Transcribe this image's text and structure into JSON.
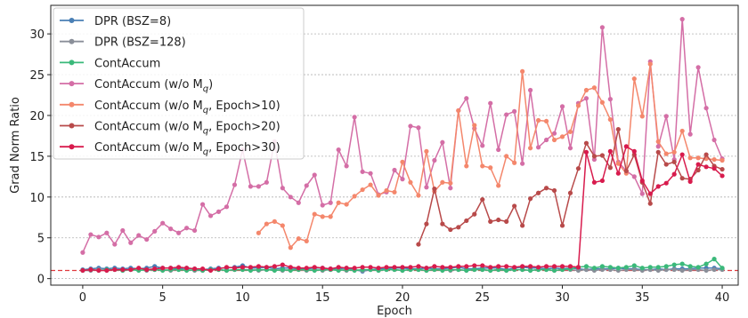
{
  "chart_data": {
    "type": "line",
    "title": "",
    "xlabel": "Epoch",
    "ylabel": "Grad Norm Ratio",
    "xlim": [
      -2,
      41
    ],
    "ylim": [
      -0.8,
      33.5
    ],
    "xticks": [
      0,
      5,
      10,
      15,
      20,
      25,
      30,
      35,
      40
    ],
    "yticks": [
      0,
      5,
      10,
      15,
      20,
      25,
      30
    ],
    "grid": "horizontal dotted",
    "legend_position": "top-left",
    "reference_line": {
      "y": 1,
      "color": "#e0393e",
      "style": "dashed"
    },
    "series": [
      {
        "name": "DPR (BSZ=8)",
        "legend_main": "DPR (BSZ=8)",
        "legend_sub": "",
        "legend_rest": "",
        "color": "#4a7fb5",
        "x": [
          0,
          0.5,
          1,
          1.5,
          2,
          2.5,
          3,
          3.5,
          4,
          4.5,
          5,
          5.5,
          6,
          6.5,
          7,
          7.5,
          8,
          8.5,
          9,
          9.5,
          10,
          10.5,
          11,
          11.5,
          12,
          12.5,
          13,
          13.5,
          14,
          14.5,
          15,
          15.5,
          16,
          16.5,
          17,
          17.5,
          18,
          18.5,
          19,
          19.5,
          20,
          20.5,
          21,
          21.5,
          22,
          22.5,
          23,
          23.5,
          24,
          24.5,
          25,
          25.5,
          26,
          26.5,
          27,
          27.5,
          28,
          28.5,
          29,
          29.5,
          30,
          30.5,
          31,
          31.5,
          32,
          32.5,
          33,
          33.5,
          34,
          34.5,
          35,
          35.5,
          36,
          36.5,
          37,
          37.5,
          38,
          38.5,
          39,
          39.5,
          40
        ],
        "values": [
          1.1,
          1.2,
          1.3,
          1.2,
          1.3,
          1.2,
          1.3,
          1.2,
          1.3,
          1.5,
          1.3,
          1.3,
          1.2,
          1.3,
          1.2,
          1.1,
          1.2,
          1.3,
          1.3,
          1.4,
          1.6,
          1.3,
          1.3,
          1.4,
          1.2,
          1.3,
          1.3,
          1.2,
          1.2,
          1.3,
          1.3,
          1.2,
          1.2,
          1.3,
          1.1,
          0.9,
          1.1,
          1.2,
          1.2,
          1.3,
          1.3,
          1.2,
          1.2,
          1.3,
          1.2,
          1.2,
          1.3,
          1.4,
          1.2,
          1.2,
          1.3,
          1.3,
          1.3,
          1.1,
          1.3,
          1.4,
          1.3,
          1.3,
          1.2,
          1.3,
          1.2,
          1.3,
          1.2,
          1.1,
          1.2,
          1.2,
          1.2,
          1.3,
          1.2,
          1.2,
          1.1,
          1.1,
          1.2,
          1.1,
          1.2,
          1.2,
          1.2,
          1.3,
          1.3,
          1.3,
          1.2
        ]
      },
      {
        "name": "DPR (BSZ=128)",
        "legend_main": "DPR (BSZ=128)",
        "legend_sub": "",
        "legend_rest": "",
        "color": "#8a8f99",
        "x": [
          0,
          0.5,
          1,
          1.5,
          2,
          2.5,
          3,
          3.5,
          4,
          4.5,
          5,
          5.5,
          6,
          6.5,
          7,
          7.5,
          8,
          8.5,
          9,
          9.5,
          10,
          10.5,
          11,
          11.5,
          12,
          12.5,
          13,
          13.5,
          14,
          14.5,
          15,
          15.5,
          16,
          16.5,
          17,
          17.5,
          18,
          18.5,
          19,
          19.5,
          20,
          20.5,
          21,
          21.5,
          22,
          22.5,
          23,
          23.5,
          24,
          24.5,
          25,
          25.5,
          26,
          26.5,
          27,
          27.5,
          28,
          28.5,
          29,
          29.5,
          30,
          30.5,
          31,
          31.5,
          32,
          32.5,
          33,
          33.5,
          34,
          34.5,
          35,
          35.5,
          36,
          36.5,
          37,
          37.5,
          38,
          38.5,
          39,
          39.5,
          40
        ],
        "values": [
          1.0,
          1.0,
          1.1,
          1.0,
          1.1,
          1.0,
          1.1,
          1.1,
          1.0,
          1.1,
          1.1,
          1.0,
          1.1,
          1.1,
          1.0,
          1.0,
          1.1,
          1.1,
          1.0,
          1.1,
          1.1,
          1.1,
          1.0,
          1.1,
          1.1,
          1.0,
          1.1,
          1.1,
          1.0,
          1.1,
          1.0,
          1.1,
          1.1,
          1.0,
          1.1,
          1.0,
          1.1,
          1.0,
          1.1,
          1.1,
          1.0,
          1.1,
          1.1,
          1.0,
          1.1,
          1.1,
          1.0,
          1.1,
          1.0,
          1.1,
          1.1,
          1.0,
          1.1,
          1.0,
          1.1,
          1.1,
          1.0,
          1.1,
          1.1,
          1.0,
          1.1,
          1.1,
          1.0,
          1.1,
          1.0,
          1.1,
          1.1,
          1.0,
          1.1,
          1.1,
          1.0,
          1.1,
          1.0,
          1.1,
          1.1,
          1.0,
          1.1,
          1.1,
          1.0,
          1.1,
          1.1
        ]
      },
      {
        "name": "ContAccum",
        "legend_main": "ContAccum",
        "legend_sub": "",
        "legend_rest": "",
        "color": "#3ab97a",
        "x": [
          0,
          0.5,
          1,
          1.5,
          2,
          2.5,
          3,
          3.5,
          4,
          4.5,
          5,
          5.5,
          6,
          6.5,
          7,
          7.5,
          8,
          8.5,
          9,
          9.5,
          10,
          10.5,
          11,
          11.5,
          12,
          12.5,
          13,
          13.5,
          14,
          14.5,
          15,
          15.5,
          16,
          16.5,
          17,
          17.5,
          18,
          18.5,
          19,
          19.5,
          20,
          20.5,
          21,
          21.5,
          22,
          22.5,
          23,
          23.5,
          24,
          24.5,
          25,
          25.5,
          26,
          26.5,
          27,
          27.5,
          28,
          28.5,
          29,
          29.5,
          30,
          30.5,
          31,
          31.5,
          32,
          32.5,
          33,
          33.5,
          34,
          34.5,
          35,
          35.5,
          36,
          36.5,
          37,
          37.5,
          38,
          38.5,
          39,
          39.5,
          40
        ],
        "values": [
          1.0,
          1.1,
          1.0,
          1.1,
          1.1,
          1.0,
          1.1,
          1.0,
          1.1,
          1.1,
          1.0,
          1.1,
          1.1,
          1.0,
          1.1,
          1.0,
          1.1,
          1.1,
          1.0,
          1.1,
          1.1,
          1.0,
          1.1,
          1.1,
          1.0,
          1.1,
          1.0,
          1.1,
          1.1,
          1.0,
          1.1,
          1.1,
          1.0,
          1.1,
          1.0,
          1.1,
          1.1,
          1.0,
          1.1,
          1.1,
          1.0,
          1.1,
          1.1,
          1.0,
          1.1,
          1.0,
          1.1,
          1.1,
          1.0,
          1.1,
          1.1,
          1.0,
          1.1,
          1.0,
          1.1,
          1.1,
          1.0,
          1.1,
          1.1,
          1.0,
          1.1,
          1.2,
          1.4,
          1.5,
          1.3,
          1.5,
          1.4,
          1.3,
          1.4,
          1.6,
          1.3,
          1.4,
          1.4,
          1.5,
          1.7,
          1.8,
          1.5,
          1.4,
          1.8,
          2.4,
          1.3
        ]
      },
      {
        "name": "ContAccum (w/o Mq)",
        "legend_main": "ContAccum (w/o M",
        "legend_sub": "q",
        "legend_rest": ")",
        "color": "#d46ea6",
        "x": [
          0,
          0.5,
          1,
          1.5,
          2,
          2.5,
          3,
          3.5,
          4,
          4.5,
          5,
          5.5,
          6,
          6.5,
          7,
          7.5,
          8,
          8.5,
          9,
          9.5,
          10,
          10.5,
          11,
          11.5,
          12,
          12.5,
          13,
          13.5,
          14,
          14.5,
          15,
          15.5,
          16,
          16.5,
          17,
          17.5,
          18,
          18.5,
          19,
          19.5,
          20,
          20.5,
          21,
          21.5,
          22,
          22.5,
          23,
          23.5,
          24,
          24.5,
          25,
          25.5,
          26,
          26.5,
          27,
          27.5,
          28,
          28.5,
          29,
          29.5,
          30,
          30.5,
          31,
          31.5,
          32,
          32.5,
          33,
          33.5,
          34,
          34.5,
          35,
          35.5,
          36,
          36.5,
          37,
          37.5,
          38,
          38.5,
          39,
          39.5,
          40
        ],
        "values": [
          3.2,
          5.4,
          5.1,
          5.6,
          4.2,
          5.9,
          4.4,
          5.3,
          4.8,
          5.8,
          6.8,
          6.1,
          5.6,
          6.2,
          5.9,
          9.1,
          7.7,
          8.2,
          8.8,
          11.5,
          15.8,
          11.3,
          11.3,
          11.8,
          16.8,
          11.1,
          10.0,
          9.3,
          11.4,
          12.7,
          9.0,
          9.3,
          15.8,
          13.8,
          19.8,
          13.1,
          12.9,
          10.3,
          10.6,
          13.3,
          12.2,
          18.7,
          18.5,
          11.2,
          14.5,
          16.7,
          11.1,
          20.6,
          22.1,
          18.4,
          16.3,
          21.5,
          15.8,
          20.1,
          20.5,
          14.1,
          23.1,
          16.1,
          17.0,
          17.8,
          21.1,
          16.0,
          21.5,
          22.1,
          14.6,
          30.8,
          22.0,
          14.3,
          13.2,
          12.5,
          10.4,
          26.6,
          16.2,
          19.9,
          14.6,
          31.8,
          17.7,
          25.9,
          20.9,
          17.0,
          14.7
        ]
      },
      {
        "name": "ContAccum (w/o Mq, Epoch>10)",
        "legend_main": "ContAccum (w/o M",
        "legend_sub": "q",
        "legend_rest": ", Epoch>10)",
        "color": "#f4876c",
        "x": [
          11,
          11.5,
          12,
          12.5,
          13,
          13.5,
          14,
          14.5,
          15,
          15.5,
          16,
          16.5,
          17,
          17.5,
          18,
          18.5,
          19,
          19.5,
          20,
          20.5,
          21,
          21.5,
          22,
          22.5,
          23,
          23.5,
          24,
          24.5,
          25,
          25.5,
          26,
          26.5,
          27,
          27.5,
          28,
          28.5,
          29,
          29.5,
          30,
          30.5,
          31,
          31.5,
          32,
          32.5,
          33,
          33.5,
          34,
          34.5,
          35,
          35.5,
          36,
          36.5,
          37,
          37.5,
          38,
          38.5,
          39,
          39.5,
          40
        ],
        "values": [
          5.6,
          6.7,
          7.0,
          6.5,
          3.8,
          4.9,
          4.6,
          7.9,
          7.6,
          7.6,
          9.3,
          9.1,
          10.1,
          10.9,
          11.5,
          10.2,
          10.8,
          10.6,
          14.3,
          11.8,
          10.2,
          15.6,
          10.7,
          11.8,
          11.7,
          20.6,
          13.8,
          18.8,
          13.8,
          13.6,
          11.4,
          15.0,
          14.2,
          25.4,
          16.0,
          19.4,
          19.3,
          17.0,
          17.4,
          18.0,
          21.2,
          23.1,
          23.4,
          21.6,
          19.5,
          14.1,
          12.9,
          24.5,
          19.9,
          26.3,
          16.8,
          15.3,
          15.5,
          18.1,
          14.8,
          14.8,
          14.7,
          14.6,
          14.5
        ]
      },
      {
        "name": "ContAccum (w/o Mq, Epoch>20)",
        "legend_main": "ContAccum (w/o M",
        "legend_sub": "q",
        "legend_rest": ", Epoch>20)",
        "color": "#b84a4a",
        "x": [
          21,
          21.5,
          22,
          22.5,
          23,
          23.5,
          24,
          24.5,
          25,
          25.5,
          26,
          26.5,
          27,
          27.5,
          28,
          28.5,
          29,
          29.5,
          30,
          30.5,
          31,
          31.5,
          32,
          32.5,
          33,
          33.5,
          34,
          34.5,
          35,
          35.5,
          36,
          36.5,
          37,
          37.5,
          38,
          38.5,
          39,
          39.5,
          40
        ],
        "values": [
          4.2,
          6.7,
          11.0,
          6.7,
          6.0,
          6.3,
          7.1,
          7.9,
          9.7,
          7.0,
          7.2,
          7.0,
          8.9,
          6.5,
          9.8,
          10.5,
          11.1,
          10.8,
          6.5,
          10.5,
          13.5,
          16.6,
          15.0,
          15.1,
          13.6,
          18.3,
          13.2,
          15.2,
          11.8,
          9.2,
          15.5,
          14.0,
          14.3,
          12.3,
          12.2,
          13.3,
          15.2,
          13.8,
          13.4
        ]
      },
      {
        "name": "ContAccum (w/o Mq, Epoch>30)",
        "legend_main": "ContAccum (w/o M",
        "legend_sub": "q",
        "legend_rest": ", Epoch>30)",
        "color": "#d81b4d",
        "x": [
          0,
          0.5,
          1,
          1.5,
          2,
          2.5,
          3,
          3.5,
          4,
          4.5,
          5,
          5.5,
          6,
          6.5,
          7,
          7.5,
          8,
          8.5,
          9,
          9.5,
          10,
          10.5,
          11,
          11.5,
          12,
          12.5,
          13,
          13.5,
          14,
          14.5,
          15,
          15.5,
          16,
          16.5,
          17,
          17.5,
          18,
          18.5,
          19,
          19.5,
          20,
          20.5,
          21,
          21.5,
          22,
          22.5,
          23,
          23.5,
          24,
          24.5,
          25,
          25.5,
          26,
          26.5,
          27,
          27.5,
          28,
          28.5,
          29,
          29.5,
          30,
          30.5,
          31,
          31.5,
          32,
          32.5,
          33,
          33.5,
          34,
          34.5,
          35,
          35.5,
          36,
          36.5,
          37,
          37.5,
          38,
          38.5,
          39,
          39.5,
          40
        ],
        "values": [
          1.0,
          1.1,
          1.0,
          1.0,
          1.1,
          1.1,
          1.1,
          1.3,
          1.1,
          1.2,
          1.3,
          1.3,
          1.4,
          1.3,
          1.2,
          1.2,
          1.0,
          1.2,
          1.4,
          1.3,
          1.4,
          1.4,
          1.5,
          1.4,
          1.5,
          1.7,
          1.4,
          1.3,
          1.3,
          1.4,
          1.3,
          1.2,
          1.4,
          1.3,
          1.3,
          1.4,
          1.4,
          1.3,
          1.4,
          1.4,
          1.4,
          1.4,
          1.5,
          1.3,
          1.5,
          1.4,
          1.4,
          1.5,
          1.5,
          1.6,
          1.6,
          1.4,
          1.5,
          1.5,
          1.4,
          1.5,
          1.5,
          1.4,
          1.5,
          1.5,
          1.5,
          1.5,
          1.4,
          15.5,
          11.8,
          12.0,
          15.6,
          12.9,
          16.2,
          15.6,
          12.0,
          10.4,
          11.3,
          11.7,
          12.8,
          15.2,
          11.9,
          14.0,
          13.7,
          13.5,
          12.6
        ]
      }
    ]
  }
}
